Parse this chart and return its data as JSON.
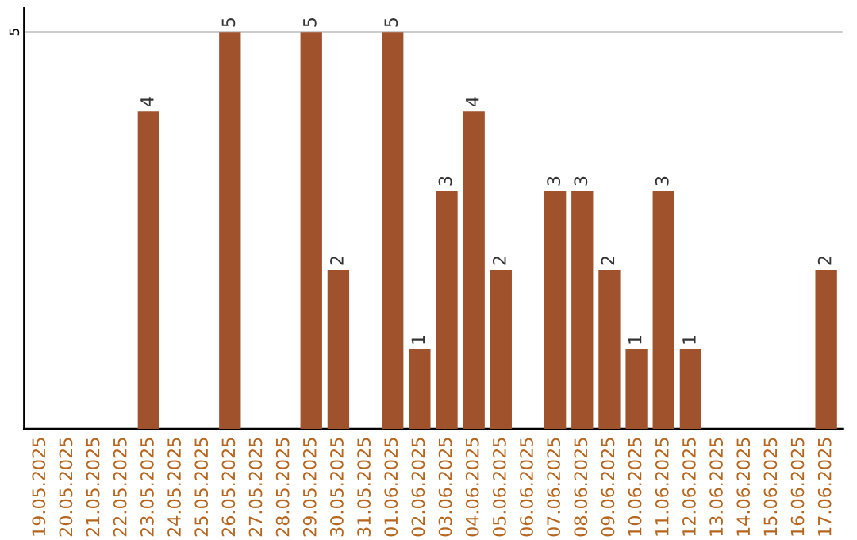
{
  "chart_data": {
    "type": "bar",
    "categories": [
      "19.05.2025",
      "20.05.2025",
      "21.05.2025",
      "22.05.2025",
      "23.05.2025",
      "24.05.2025",
      "25.05.2025",
      "26.05.2025",
      "27.05.2025",
      "28.05.2025",
      "29.05.2025",
      "30.05.2025",
      "31.05.2025",
      "01.06.2025",
      "02.06.2025",
      "03.06.2025",
      "04.06.2025",
      "05.06.2025",
      "06.06.2025",
      "07.06.2025",
      "08.06.2025",
      "09.06.2025",
      "10.06.2025",
      "11.06.2025",
      "12.06.2025",
      "13.06.2025",
      "14.06.2025",
      "15.06.2025",
      "16.06.2025",
      "17.06.2025"
    ],
    "values": [
      null,
      null,
      null,
      null,
      4,
      null,
      null,
      5,
      null,
      null,
      5,
      2,
      null,
      5,
      1,
      3,
      4,
      2,
      null,
      3,
      3,
      2,
      1,
      3,
      1,
      null,
      null,
      null,
      null,
      2
    ],
    "color": "#a0522d",
    "ylim": [
      0,
      5.3
    ],
    "yticks": [
      5
    ],
    "grid": "y",
    "data_labels": true
  }
}
